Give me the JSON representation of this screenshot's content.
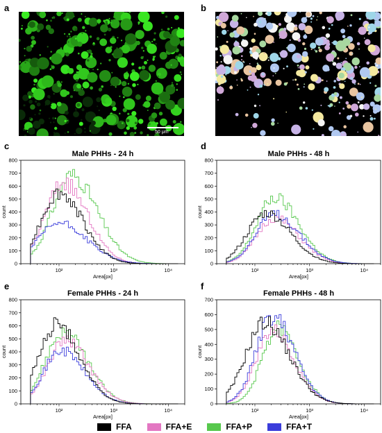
{
  "panel_letters": [
    "a",
    "b",
    "c",
    "d",
    "e",
    "f"
  ],
  "micrograph": {
    "scale_bar_label": "50 μm"
  },
  "colors": {
    "FFA": "#000000",
    "FFA+E": "#e377c2",
    "FFA+P": "#57c84d",
    "FFA+T": "#3b3ddb"
  },
  "legend": [
    {
      "label": "FFA",
      "color": "#000000"
    },
    {
      "label": "FFA+E",
      "color": "#e377c2"
    },
    {
      "label": "FFA+P",
      "color": "#57c84d"
    },
    {
      "label": "FFA+T",
      "color": "#3b3ddb"
    }
  ],
  "chart_data": [
    {
      "type": "line",
      "title": "Male PHHs - 24 h",
      "xlabel": "Area[px]",
      "ylabel": "count",
      "xscale": "log",
      "xlim": [
        20,
        20000
      ],
      "ylim": [
        0,
        800
      ],
      "yticks": [
        0,
        100,
        200,
        300,
        400,
        500,
        600,
        700,
        800
      ],
      "xticks": [
        100,
        1000,
        10000
      ],
      "xtick_labels": [
        "10²",
        "10³",
        "10⁴"
      ],
      "series": [
        {
          "name": "FFA",
          "peak_x": 100,
          "peak_y": 560,
          "width": 0.33
        },
        {
          "name": "FFA+E",
          "peak_x": 120,
          "peak_y": 640,
          "width": 0.33
        },
        {
          "name": "FFA+P",
          "peak_x": 170,
          "peak_y": 700,
          "width": 0.35
        },
        {
          "name": "FFA+T",
          "peak_x": 100,
          "peak_y": 320,
          "width": 0.38
        }
      ]
    },
    {
      "type": "line",
      "title": "Male PHHs - 48 h",
      "xlabel": "Area[px]",
      "ylabel": "count",
      "xscale": "log",
      "xlim": [
        20,
        20000
      ],
      "ylim": [
        0,
        800
      ],
      "yticks": [
        0,
        100,
        200,
        300,
        400,
        500,
        600,
        700,
        800
      ],
      "xticks": [
        100,
        1000,
        10000
      ],
      "xtick_labels": [
        "10²",
        "10³",
        "10⁴"
      ],
      "series": [
        {
          "name": "FFA",
          "peak_x": 160,
          "peak_y": 400,
          "width": 0.34
        },
        {
          "name": "FFA+E",
          "peak_x": 230,
          "peak_y": 360,
          "width": 0.33
        },
        {
          "name": "FFA+P",
          "peak_x": 230,
          "peak_y": 520,
          "width": 0.33
        },
        {
          "name": "FFA+T",
          "peak_x": 230,
          "peak_y": 390,
          "width": 0.34
        }
      ]
    },
    {
      "type": "line",
      "title": "Female PHHs - 24 h",
      "xlabel": "Area[px]",
      "ylabel": "count",
      "xscale": "log",
      "xlim": [
        20,
        20000
      ],
      "ylim": [
        0,
        800
      ],
      "yticks": [
        0,
        100,
        200,
        300,
        400,
        500,
        600,
        700,
        800
      ],
      "xticks": [
        100,
        1000,
        10000
      ],
      "xtick_labels": [
        "10²",
        "10³",
        "10⁴"
      ],
      "series": [
        {
          "name": "FFA",
          "peak_x": 90,
          "peak_y": 620,
          "width": 0.32
        },
        {
          "name": "FFA+E",
          "peak_x": 130,
          "peak_y": 500,
          "width": 0.32
        },
        {
          "name": "FFA+P",
          "peak_x": 120,
          "peak_y": 560,
          "width": 0.33
        },
        {
          "name": "FFA+T",
          "peak_x": 110,
          "peak_y": 420,
          "width": 0.32
        }
      ]
    },
    {
      "type": "line",
      "title": "Female PHHs - 48 h",
      "xlabel": "Area[px]",
      "ylabel": "count",
      "xscale": "log",
      "xlim": [
        20,
        20000
      ],
      "ylim": [
        0,
        700
      ],
      "yticks": [
        0,
        100,
        200,
        300,
        400,
        500,
        600,
        700
      ],
      "xticks": [
        100,
        1000,
        10000
      ],
      "xtick_labels": [
        "10²",
        "10³",
        "10⁴"
      ],
      "series": [
        {
          "name": "FFA",
          "peak_x": 150,
          "peak_y": 560,
          "width": 0.34
        },
        {
          "name": "FFA+E",
          "peak_x": 210,
          "peak_y": 500,
          "width": 0.3
        },
        {
          "name": "FFA+P",
          "peak_x": 260,
          "peak_y": 520,
          "width": 0.28
        },
        {
          "name": "FFA+T",
          "peak_x": 210,
          "peak_y": 600,
          "width": 0.3
        }
      ]
    }
  ]
}
